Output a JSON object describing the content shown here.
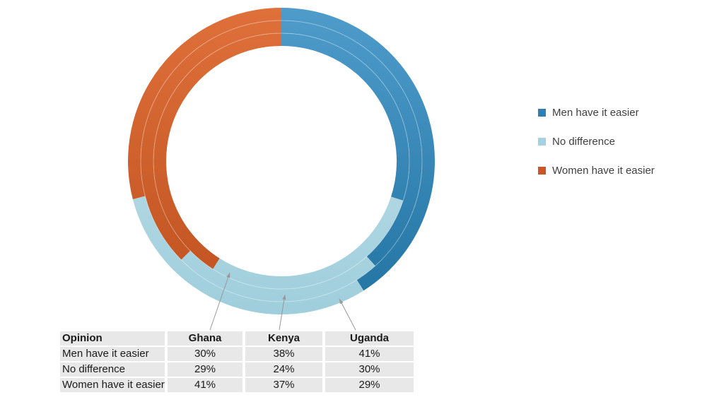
{
  "chart_data": {
    "type": "donut",
    "description": "Multi-ring doughnut chart; each ring is a country. Segments start at 12 o'clock and run clockwise: Men have it easier, No difference, Women have it easier.",
    "categories": [
      "Men have it easier",
      "No difference",
      "Women have it easier"
    ],
    "series": [
      {
        "name": "Ghana",
        "ring": "inner",
        "values": [
          30,
          29,
          41
        ]
      },
      {
        "name": "Kenya",
        "ring": "middle",
        "values": [
          38,
          24,
          37
        ]
      },
      {
        "name": "Uganda",
        "ring": "outer",
        "values": [
          41,
          30,
          29
        ]
      }
    ],
    "unit": "%",
    "colors": [
      {
        "category": "Men have it easier",
        "base": "#3688BB",
        "light": "#4F9CCB",
        "dark": "#2173A2"
      },
      {
        "category": "No difference",
        "base": "#AFD8E4",
        "light": "#C8E4EC",
        "dark": "#9FCEDC"
      },
      {
        "category": "Women have it easier",
        "base": "#D2622E",
        "light": "#DF703A",
        "dark": "#BE5120"
      }
    ],
    "legend_position": "right",
    "grid": false
  },
  "legend": {
    "items": [
      {
        "label": "Men have it easier",
        "color": "#2E80B2"
      },
      {
        "label": "No difference",
        "color": "#A5D2E2"
      },
      {
        "label": "Women have it easier",
        "color": "#CC5527"
      }
    ]
  },
  "table": {
    "headers": [
      "Opinion",
      "Ghana",
      "Kenya",
      "Uganda"
    ],
    "rows": [
      [
        "Men have it easier",
        "30%",
        "38%",
        "41%"
      ],
      [
        "No difference",
        "29%",
        "24%",
        "30%"
      ],
      [
        "Women have it easier",
        "41%",
        "37%",
        "29%"
      ]
    ]
  },
  "arrows": [
    {
      "from_column": "Ghana",
      "points_to_ring": "inner"
    },
    {
      "from_column": "Kenya",
      "points_to_ring": "middle"
    },
    {
      "from_column": "Uganda",
      "points_to_ring": "outer"
    }
  ]
}
